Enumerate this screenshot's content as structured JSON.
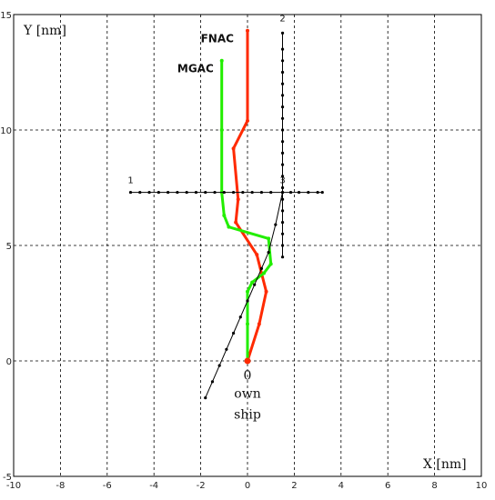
{
  "chart_data": {
    "type": "line",
    "xlabel": "X [nm]",
    "ylabel": "Y [nm]",
    "xlim": [
      -10,
      10
    ],
    "ylim": [
      -5,
      15
    ],
    "x_ticks": [
      -10,
      -8,
      -6,
      -4,
      -2,
      0,
      2,
      4,
      6,
      8,
      10
    ],
    "y_ticks": [
      -5,
      0,
      5,
      10,
      15
    ],
    "grid": true,
    "series": [
      {
        "name": "FNAC",
        "color": "#ff2a00",
        "points": [
          [
            0,
            0
          ],
          [
            0.5,
            1.6
          ],
          [
            0.8,
            3.0
          ],
          [
            0.6,
            3.8
          ],
          [
            0.4,
            4.6
          ],
          [
            -0.5,
            6.0
          ],
          [
            -0.4,
            7.0
          ],
          [
            -0.6,
            9.2
          ],
          [
            0,
            10.4
          ],
          [
            0,
            14.3
          ]
        ]
      },
      {
        "name": "MGAC",
        "color": "#22ee00",
        "points": [
          [
            0,
            0
          ],
          [
            0,
            1.6
          ],
          [
            0,
            3.0
          ],
          [
            0.2,
            3.4
          ],
          [
            0.7,
            3.8
          ],
          [
            1.0,
            4.2
          ],
          [
            0.9,
            5.3
          ],
          [
            -0.8,
            5.8
          ],
          [
            -1.0,
            6.3
          ],
          [
            -1.1,
            7.3
          ],
          [
            -1.1,
            10.0
          ],
          [
            -1.1,
            13.0
          ]
        ]
      },
      {
        "name": "",
        "color": "#000000",
        "points": [
          [
            -5.0,
            7.3
          ],
          [
            -4.6,
            7.3
          ],
          [
            -4.2,
            7.3
          ],
          [
            -3.8,
            7.3
          ],
          [
            -3.4,
            7.3
          ],
          [
            -3.0,
            7.3
          ],
          [
            -2.6,
            7.3
          ],
          [
            -2.2,
            7.3
          ],
          [
            -1.8,
            7.3
          ],
          [
            -1.4,
            7.3
          ],
          [
            -1.0,
            7.3
          ],
          [
            -0.6,
            7.3
          ],
          [
            -0.2,
            7.3
          ],
          [
            0.2,
            7.3
          ],
          [
            0.6,
            7.3
          ],
          [
            1.0,
            7.3
          ],
          [
            1.5,
            7.3
          ],
          [
            1.85,
            7.3
          ],
          [
            2.2,
            7.3
          ],
          [
            2.6,
            7.3
          ],
          [
            3.0,
            7.3
          ],
          [
            3.2,
            7.3
          ]
        ]
      },
      {
        "name": "",
        "color": "#000000",
        "points": [
          [
            1.5,
            4.5
          ],
          [
            1.5,
            5.0
          ],
          [
            1.5,
            5.5
          ],
          [
            1.5,
            6.0
          ],
          [
            1.5,
            6.5
          ],
          [
            1.5,
            7.0
          ],
          [
            1.5,
            7.5
          ],
          [
            1.5,
            8.0
          ],
          [
            1.5,
            8.5
          ],
          [
            1.5,
            9.0
          ],
          [
            1.5,
            9.5
          ],
          [
            1.5,
            10.0
          ],
          [
            1.5,
            10.5
          ],
          [
            1.5,
            11.0
          ],
          [
            1.5,
            11.5
          ],
          [
            1.5,
            12.0
          ],
          [
            1.5,
            12.5
          ],
          [
            1.5,
            13.0
          ],
          [
            1.5,
            13.5
          ],
          [
            1.5,
            14.2
          ]
        ]
      },
      {
        "name": "",
        "color": "#000000",
        "points": [
          [
            -1.8,
            -1.6
          ],
          [
            -1.5,
            -0.9
          ],
          [
            -1.2,
            -0.2
          ],
          [
            -0.9,
            0.5
          ],
          [
            -0.6,
            1.2
          ],
          [
            -0.3,
            1.9
          ],
          [
            0.0,
            2.6
          ],
          [
            0.3,
            3.3
          ],
          [
            0.6,
            4.0
          ],
          [
            0.9,
            4.7
          ],
          [
            1.2,
            5.9
          ],
          [
            1.5,
            7.3
          ]
        ]
      }
    ],
    "annotations": [
      {
        "text": "FNAC",
        "x": -2.0,
        "y": 13.8
      },
      {
        "text": "MGAC",
        "x": -3.0,
        "y": 12.5
      },
      {
        "text": "1",
        "x": -5.0,
        "y": 7.7
      },
      {
        "text": "2",
        "x": 1.5,
        "y": 14.7
      },
      {
        "text": "3",
        "x": 1.5,
        "y": 7.7
      },
      {
        "text": "0",
        "x": 0.0,
        "y": -0.8
      },
      {
        "text": "own",
        "x": 0.0,
        "y": -1.6
      },
      {
        "text": "ship",
        "x": 0.0,
        "y": -2.5
      }
    ]
  }
}
